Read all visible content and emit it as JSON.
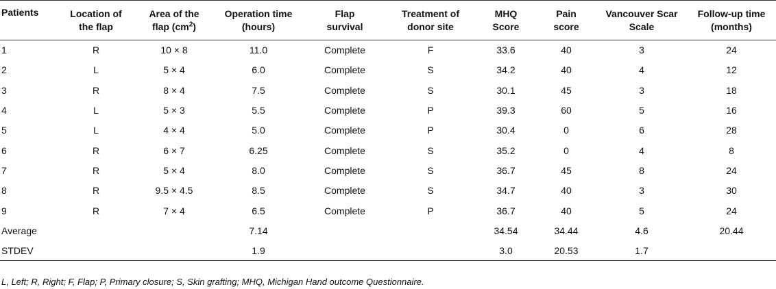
{
  "headers": [
    {
      "line1": "Patients",
      "line2": ""
    },
    {
      "line1": "Location of",
      "line2": "the flap"
    },
    {
      "line1": "Area of the",
      "line2": "flap (cm",
      "sup": "2",
      "tail": ")"
    },
    {
      "line1": "Operation time",
      "line2": "(hours)"
    },
    {
      "line1": "Flap",
      "line2": "survival"
    },
    {
      "line1": "Treatment of",
      "line2": "donor site"
    },
    {
      "line1": "MHQ",
      "line2": "Score"
    },
    {
      "line1": "Pain",
      "line2": "score"
    },
    {
      "line1": "Vancouver Scar",
      "line2": "Scale"
    },
    {
      "line1": "Follow-up time",
      "line2": "(months)"
    }
  ],
  "rows": [
    [
      "1",
      "R",
      "10 × 8",
      "11.0",
      "Complete",
      "F",
      "33.6",
      "40",
      "3",
      "24"
    ],
    [
      "2",
      "L",
      "5 × 4",
      "6.0",
      "Complete",
      "S",
      "34.2",
      "40",
      "4",
      "12"
    ],
    [
      "3",
      "R",
      "8 × 4",
      "7.5",
      "Complete",
      "S",
      "30.1",
      "45",
      "3",
      "18"
    ],
    [
      "4",
      "L",
      "5 × 3",
      "5.5",
      "Complete",
      "P",
      "39.3",
      "60",
      "5",
      "16"
    ],
    [
      "5",
      "L",
      "4 × 4",
      "5.0",
      "Complete",
      "P",
      "30.4",
      "0",
      "6",
      "28"
    ],
    [
      "6",
      "R",
      "6 × 7",
      "6.25",
      "Complete",
      "S",
      "35.2",
      "0",
      "4",
      "8"
    ],
    [
      "7",
      "R",
      "5 × 4",
      "8.0",
      "Complete",
      "S",
      "36.7",
      "45",
      "8",
      "24"
    ],
    [
      "8",
      "R",
      "9.5 × 4.5",
      "8.5",
      "Complete",
      "S",
      "34.7",
      "40",
      "3",
      "30"
    ],
    [
      "9",
      "R",
      "7 × 4",
      "6.5",
      "Complete",
      "P",
      "36.7",
      "40",
      "5",
      "24"
    ],
    [
      "Average",
      "",
      "",
      "7.14",
      "",
      "",
      "34.54",
      "34.44",
      "4.6",
      "20.44"
    ],
    [
      "STDEV",
      "",
      "",
      "1.9",
      "",
      "",
      "3.0",
      "20.53",
      "1.7",
      ""
    ]
  ],
  "footnote": "L, Left; R, Right; F, Flap; P, Primary closure; S, Skin grafting; MHQ, Michigan Hand outcome Questionnaire."
}
